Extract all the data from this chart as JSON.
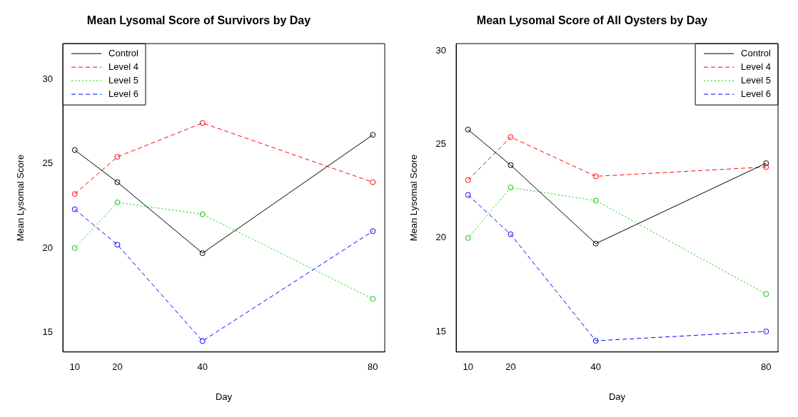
{
  "chart_data": [
    {
      "type": "line",
      "title": "Mean Lysomal Score of Survivors by Day",
      "xlabel": "Day",
      "ylabel": "Mean Lysomal Score",
      "x": [
        10,
        20,
        40,
        80
      ],
      "xlim": [
        7.2,
        82.8
      ],
      "xticks": [
        10,
        20,
        40,
        80
      ],
      "ylim": [
        13.85,
        32.1
      ],
      "yticks": [
        15,
        20,
        25,
        30
      ],
      "grid": false,
      "legend": "top left",
      "marker": "circle",
      "series": [
        {
          "name": "Control",
          "color": "#000000",
          "line_style": "solid",
          "values": [
            25.8,
            23.9,
            19.7,
            26.7
          ]
        },
        {
          "name": "Level 4",
          "color": "#ff0000",
          "line_style": "dashed",
          "values": [
            23.2,
            25.4,
            27.4,
            23.9
          ]
        },
        {
          "name": "Level 5",
          "color": "#00cd00",
          "line_style": "dotted",
          "values": [
            20.0,
            22.7,
            22.0,
            17.0
          ]
        },
        {
          "name": "Level 6",
          "color": "#0000ff",
          "line_style": "dashed",
          "values": [
            22.3,
            20.2,
            14.5,
            21.0
          ]
        }
      ]
    },
    {
      "type": "line",
      "title": "Mean Lysomal Score of All Oysters by Day",
      "xlabel": "Day",
      "ylabel": "Mean Lysomal Score",
      "x": [
        10,
        20,
        40,
        80
      ],
      "xlim": [
        7.2,
        82.8
      ],
      "xticks": [
        10,
        20,
        40,
        80
      ],
      "ylim": [
        13.9,
        30.4
      ],
      "yticks": [
        15,
        20,
        25,
        30
      ],
      "grid": false,
      "legend": "top right",
      "marker": "circle",
      "series": [
        {
          "name": "Control",
          "color": "#000000",
          "line_style": "solid",
          "values": [
            25.8,
            23.9,
            19.7,
            24.0
          ]
        },
        {
          "name": "Level 4",
          "color": "#ff0000",
          "line_style": "dashed",
          "values": [
            23.1,
            25.4,
            23.3,
            23.8
          ]
        },
        {
          "name": "Level 5",
          "color": "#00cd00",
          "line_style": "dotted",
          "values": [
            20.0,
            22.7,
            22.0,
            17.0
          ]
        },
        {
          "name": "Level 6",
          "color": "#0000ff",
          "line_style": "dashed",
          "values": [
            22.3,
            20.2,
            14.5,
            15.0
          ]
        }
      ]
    }
  ]
}
